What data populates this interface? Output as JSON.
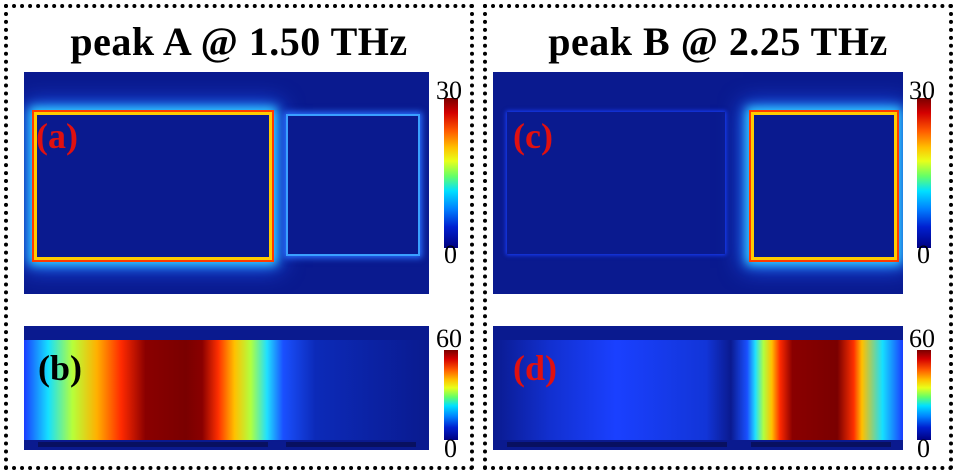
{
  "panels": [
    {
      "title": "peak A @ 1.50 THz",
      "top_label": "(a)",
      "bottom_label": "(b)",
      "top_colorbar": {
        "max": "30",
        "min": "0"
      },
      "bottom_colorbar": {
        "max": "60",
        "min": "0"
      }
    },
    {
      "title": "peak B @ 2.25 THz",
      "top_label": "(c)",
      "bottom_label": "(d)",
      "top_colorbar": {
        "max": "30",
        "min": "0"
      },
      "bottom_colorbar": {
        "max": "60",
        "min": "0"
      }
    }
  ],
  "colors": {
    "background_field": "#0a1a8f",
    "label_red": "#e01010",
    "label_black": "#000000",
    "hot_edge": "#ffcc00"
  }
}
